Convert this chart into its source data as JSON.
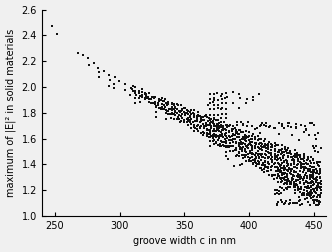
{
  "title": "",
  "xlabel": "groove width c in nm",
  "ylabel": "maximum of |E|² in solid materials",
  "xlim": [
    240,
    460
  ],
  "ylim": [
    1.0,
    2.6
  ],
  "xticks": [
    250,
    300,
    350,
    400,
    450
  ],
  "yticks": [
    1.0,
    1.2,
    1.4,
    1.6,
    1.8,
    2.0,
    2.2,
    2.4,
    2.6
  ],
  "marker_color": "#111111",
  "background_color": "#f0f0f0",
  "seed": 7
}
